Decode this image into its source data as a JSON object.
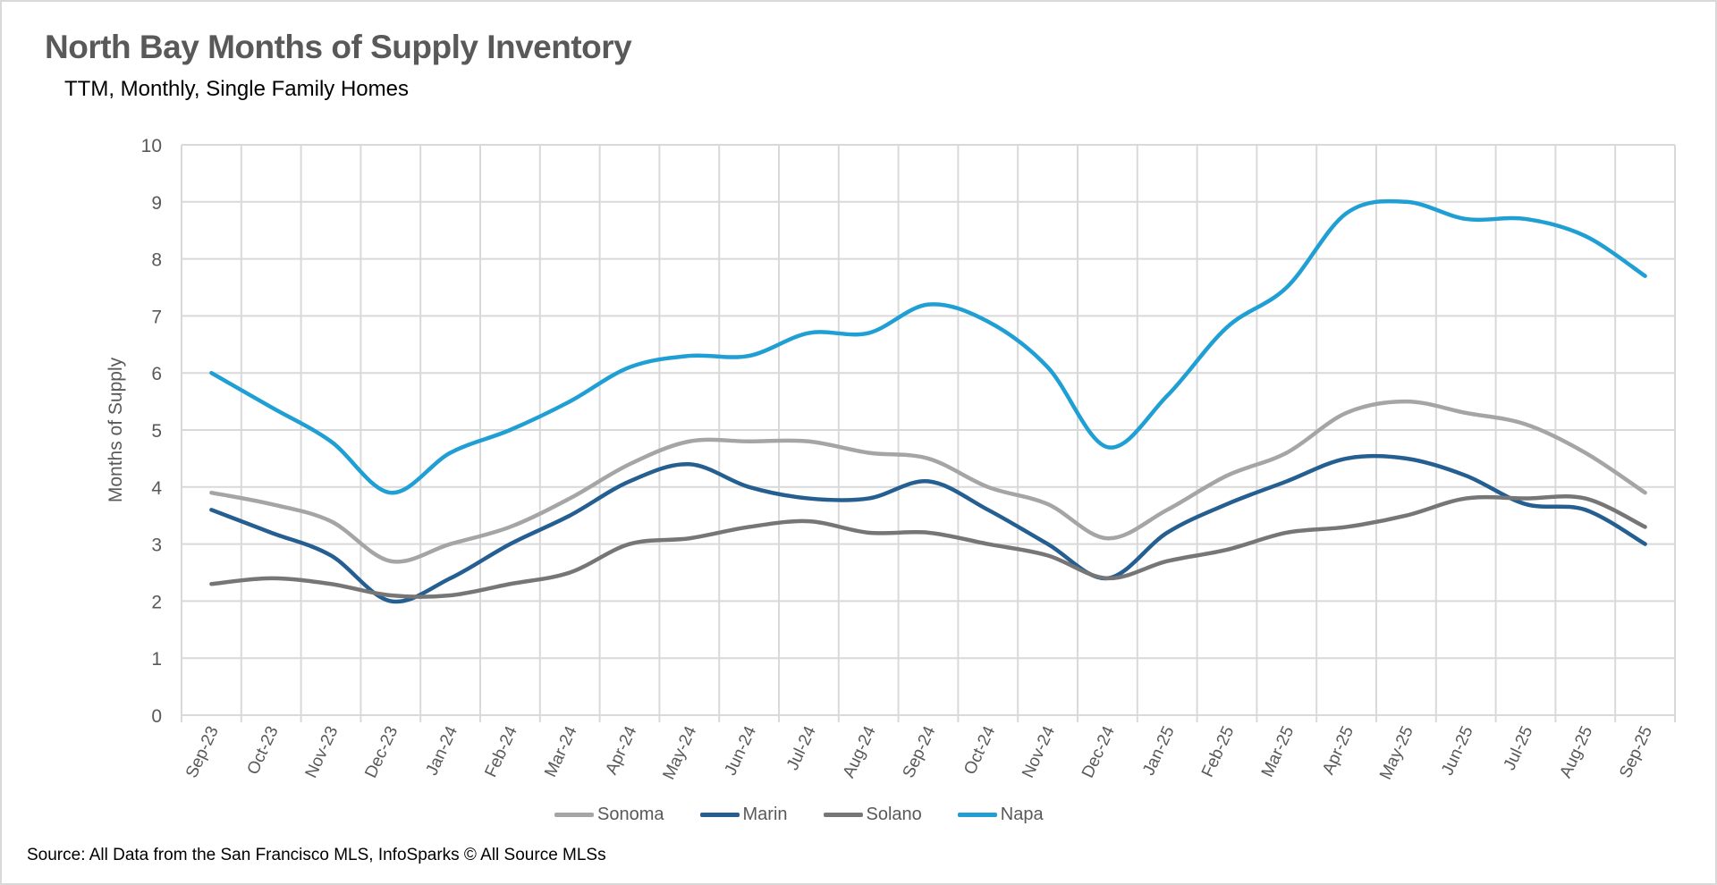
{
  "chart_data": {
    "type": "line",
    "title": "North Bay Months of Supply Inventory",
    "subtitle": "TTM, Monthly, Single Family Homes",
    "xlabel": "",
    "ylabel": "Months of Supply",
    "ylim": [
      0,
      10
    ],
    "yticks": [
      0,
      1,
      2,
      3,
      4,
      5,
      6,
      7,
      8,
      9,
      10
    ],
    "grid": true,
    "legend_position": "bottom",
    "smooth": true,
    "categories": [
      "Sep-23",
      "Oct-23",
      "Nov-23",
      "Dec-23",
      "Jan-24",
      "Feb-24",
      "Mar-24",
      "Apr-24",
      "May-24",
      "Jun-24",
      "Jul-24",
      "Aug-24",
      "Sep-24",
      "Oct-24",
      "Nov-24",
      "Dec-24",
      "Jan-25",
      "Feb-25",
      "Mar-25",
      "Apr-25",
      "May-25",
      "Jun-25",
      "Jul-25",
      "Aug-25",
      "Sep-25"
    ],
    "series": [
      {
        "name": "Sonoma",
        "color": "#a5a5a5",
        "values": [
          3.9,
          3.7,
          3.4,
          2.7,
          3.0,
          3.3,
          3.8,
          4.4,
          4.8,
          4.8,
          4.8,
          4.6,
          4.5,
          4.0,
          3.7,
          3.1,
          3.6,
          4.2,
          4.6,
          5.3,
          5.5,
          5.3,
          5.1,
          4.6,
          3.9
        ]
      },
      {
        "name": "Marin",
        "color": "#255e91",
        "values": [
          3.6,
          3.2,
          2.8,
          2.0,
          2.4,
          3.0,
          3.5,
          4.1,
          4.4,
          4.0,
          3.8,
          3.8,
          4.1,
          3.6,
          3.0,
          2.4,
          3.2,
          3.7,
          4.1,
          4.5,
          4.5,
          4.2,
          3.7,
          3.6,
          3.0
        ]
      },
      {
        "name": "Solano",
        "color": "#767676",
        "values": [
          2.3,
          2.4,
          2.3,
          2.1,
          2.1,
          2.3,
          2.5,
          3.0,
          3.1,
          3.3,
          3.4,
          3.2,
          3.2,
          3.0,
          2.8,
          2.4,
          2.7,
          2.9,
          3.2,
          3.3,
          3.5,
          3.8,
          3.8,
          3.8,
          3.3
        ]
      },
      {
        "name": "Napa",
        "color": "#1f9fd4",
        "values": [
          6.0,
          5.4,
          4.8,
          3.9,
          4.6,
          5.0,
          5.5,
          6.1,
          6.3,
          6.3,
          6.7,
          6.7,
          7.2,
          6.9,
          6.1,
          4.7,
          5.6,
          6.8,
          7.5,
          8.8,
          9.0,
          8.7,
          8.7,
          8.4,
          7.7
        ]
      }
    ]
  },
  "footer": "Source: All Data from the San Francisco MLS, InfoSparks © All Source MLSs"
}
